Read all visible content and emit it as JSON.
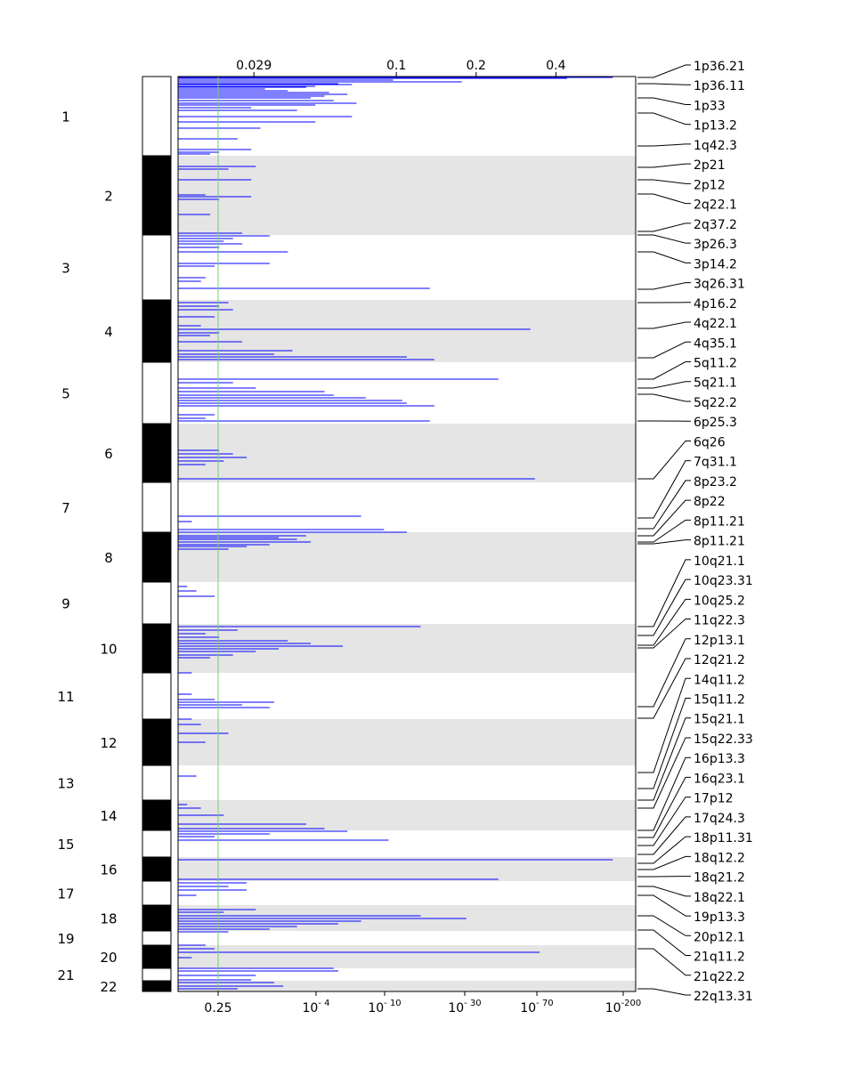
{
  "chart_data": {
    "type": "genome-wide bar plot (horizontal segments per chromosome)",
    "top_axis_ticks": [
      "0.029",
      "0.1",
      "0.2",
      "0.4"
    ],
    "top_axis_values": [
      0.029,
      0.1,
      0.2,
      0.4
    ],
    "bottom_axis_ticks": [
      {
        "label": "0.25",
        "base": "",
        "exp": ""
      },
      {
        "label": "",
        "base": "10",
        "exp": "- 4"
      },
      {
        "label": "",
        "base": "10",
        "exp": "- 10"
      },
      {
        "label": "",
        "base": "10",
        "exp": "- 30"
      },
      {
        "label": "",
        "base": "10",
        "exp": "- 70"
      },
      {
        "label": "",
        "base": "10",
        "exp": "-200"
      }
    ],
    "significance_threshold": {
      "qvalue": 0.25,
      "color": "#77cc77"
    },
    "colors": {
      "bar": "#0000ff",
      "band_dark": "#000000",
      "shade": "#e5e5e5"
    },
    "chromosomes": [
      {
        "label": "1",
        "start": 0,
        "end": 89
      },
      {
        "label": "2",
        "start": 89,
        "end": 178
      },
      {
        "label": "3",
        "start": 178,
        "end": 251
      },
      {
        "label": "4",
        "start": 251,
        "end": 321
      },
      {
        "label": "5",
        "start": 321,
        "end": 390
      },
      {
        "label": "6",
        "start": 390,
        "end": 456
      },
      {
        "label": "7",
        "start": 456,
        "end": 512
      },
      {
        "label": "8",
        "start": 512,
        "end": 568
      },
      {
        "label": "9",
        "start": 568,
        "end": 615
      },
      {
        "label": "10",
        "start": 615,
        "end": 670
      },
      {
        "label": "11",
        "start": 670,
        "end": 722
      },
      {
        "label": "12",
        "start": 722,
        "end": 774
      },
      {
        "label": "13",
        "start": 774,
        "end": 813
      },
      {
        "label": "14",
        "start": 813,
        "end": 847
      },
      {
        "label": "15",
        "start": 847,
        "end": 877
      },
      {
        "label": "16",
        "start": 877,
        "end": 904
      },
      {
        "label": "17",
        "start": 904,
        "end": 931
      },
      {
        "label": "18",
        "start": 931,
        "end": 960
      },
      {
        "label": "19",
        "start": 960,
        "end": 976
      },
      {
        "label": "20",
        "start": 976,
        "end": 1002
      },
      {
        "label": "21",
        "start": 1002,
        "end": 1016
      },
      {
        "label": "22",
        "start": 1016,
        "end": 1028
      }
    ],
    "peak_labels": [
      "1p36.21",
      "1p36.11",
      "1p33",
      "1p13.2",
      "1q42.3",
      "2p21",
      "2p12",
      "2q22.1",
      "2q37.2",
      "3p26.3",
      "3p14.2",
      "3q26.31",
      "4p16.2",
      "4q22.1",
      "4q35.1",
      "5q11.2",
      "5q21.1",
      "5q22.2",
      "6p25.3",
      "6q26",
      "7q31.1",
      "8p23.2",
      "8p22",
      "8p11.21",
      "8p11.21",
      "10q21.1",
      "10q23.31",
      "10q25.2",
      "11q22.3",
      "12p13.1",
      "12q21.2",
      "14q11.2",
      "15q11.2",
      "15q21.1",
      "15q22.33",
      "16p13.3",
      "16q23.1",
      "17p12",
      "17q24.3",
      "18p11.31",
      "18q12.2",
      "18q21.2",
      "18q22.1",
      "19p13.3",
      "20p12.1",
      "21q11.2",
      "21q22.2",
      "22q13.31"
    ],
    "peak_positions": [
      1,
      8,
      24,
      41,
      78,
      102,
      116,
      132,
      174,
      178,
      197,
      239,
      254,
      283,
      316,
      340,
      350,
      357,
      387,
      452,
      496,
      508,
      516,
      523,
      525,
      618,
      628,
      639,
      642,
      708,
      721,
      782,
      800,
      813,
      822,
      847,
      855,
      864,
      874,
      884,
      891,
      899,
      910,
      920,
      943,
      959,
      980,
      1025
    ],
    "segments": [
      [
        1,
        0.95,
        0.2
      ],
      [
        2,
        0.85,
        0.3
      ],
      [
        4,
        0.47,
        0.3
      ],
      [
        6,
        0.62,
        0.5
      ],
      [
        8,
        0.35,
        0.3
      ],
      [
        9,
        0.38,
        0.3
      ],
      [
        11,
        0.3,
        0.3
      ],
      [
        12,
        0.28,
        0.2
      ],
      [
        14,
        0.19,
        0.3
      ],
      [
        16,
        0.24,
        0.3
      ],
      [
        18,
        0.33,
        0.3
      ],
      [
        20,
        0.37,
        0.3
      ],
      [
        22,
        0.32,
        0.3
      ],
      [
        24,
        0.29,
        0.3
      ],
      [
        27,
        0.34,
        0.3
      ],
      [
        30,
        0.39,
        0.3
      ],
      [
        32,
        0.3,
        0.3
      ],
      [
        35,
        0.16,
        0.2
      ],
      [
        38,
        0.26,
        0.3
      ],
      [
        45,
        0.38,
        0.3
      ],
      [
        51,
        0.3,
        0.3
      ],
      [
        58,
        0.18,
        0.3
      ],
      [
        70,
        0.13,
        0.3
      ],
      [
        82,
        0.16,
        0.3
      ],
      [
        85,
        0.09,
        0.3
      ],
      [
        87,
        0.07,
        0.3
      ],
      [
        101,
        0.17,
        0.3
      ],
      [
        104,
        0.11,
        0.3
      ],
      [
        116,
        0.16,
        0.3
      ],
      [
        133,
        0.06,
        0.3
      ],
      [
        135,
        0.16,
        0.3
      ],
      [
        138,
        0.09,
        0.3
      ],
      [
        155,
        0.07,
        0.3
      ],
      [
        176,
        0.14,
        0.3
      ],
      [
        179,
        0.2,
        0.3
      ],
      [
        182,
        0.12,
        0.3
      ],
      [
        185,
        0.1,
        0.3
      ],
      [
        188,
        0.14,
        0.3
      ],
      [
        192,
        0.09,
        0.3
      ],
      [
        197,
        0.24,
        0.3
      ],
      [
        210,
        0.2,
        0.3
      ],
      [
        213,
        0.08,
        0.3
      ],
      [
        226,
        0.06,
        0.3
      ],
      [
        230,
        0.05,
        0.3
      ],
      [
        238,
        0.55,
        0.3
      ],
      [
        254,
        0.11,
        0.3
      ],
      [
        258,
        0.09,
        0.3
      ],
      [
        262,
        0.12,
        0.3
      ],
      [
        270,
        0.08,
        0.3
      ],
      [
        280,
        0.05,
        0.3
      ],
      [
        284,
        0.77,
        0.3
      ],
      [
        288,
        0.09,
        0.3
      ],
      [
        291,
        0.07,
        0.3
      ],
      [
        298,
        0.14,
        0.3
      ],
      [
        308,
        0.25,
        0.3
      ],
      [
        312,
        0.21,
        0.3
      ],
      [
        315,
        0.5,
        0.3
      ],
      [
        318,
        0.56,
        0.3
      ],
      [
        340,
        0.7,
        0.3
      ],
      [
        344,
        0.12,
        0.3
      ],
      [
        350,
        0.17,
        0.3
      ],
      [
        354,
        0.32,
        0.3
      ],
      [
        358,
        0.34,
        0.3
      ],
      [
        361,
        0.41,
        0.3
      ],
      [
        364,
        0.49,
        0.3
      ],
      [
        367,
        0.5,
        0.3
      ],
      [
        370,
        0.56,
        0.3
      ],
      [
        380,
        0.08,
        0.3
      ],
      [
        384,
        0.06,
        0.3
      ],
      [
        387,
        0.55,
        0.3
      ],
      [
        420,
        0.09,
        0.3
      ],
      [
        424,
        0.12,
        0.3
      ],
      [
        428,
        0.15,
        0.3
      ],
      [
        432,
        0.1,
        0.3
      ],
      [
        436,
        0.06,
        0.3
      ],
      [
        452,
        0.78,
        0.3
      ],
      [
        494,
        0.4,
        0.3
      ],
      [
        500,
        0.03,
        0.3
      ],
      [
        509,
        0.45,
        0.3
      ],
      [
        512,
        0.5,
        0.3
      ],
      [
        516,
        0.28,
        0.3
      ],
      [
        518,
        0.22,
        0.3
      ],
      [
        520,
        0.26,
        0.3
      ],
      [
        523,
        0.29,
        0.3
      ],
      [
        526,
        0.2,
        0.3
      ],
      [
        528,
        0.15,
        0.3
      ],
      [
        531,
        0.11,
        0.3
      ],
      [
        573,
        0.02,
        0.3
      ],
      [
        578,
        0.04,
        0.3
      ],
      [
        584,
        0.08,
        0.3
      ],
      [
        618,
        0.53,
        0.3
      ],
      [
        622,
        0.13,
        0.3
      ],
      [
        626,
        0.06,
        0.3
      ],
      [
        630,
        0.09,
        0.3
      ],
      [
        634,
        0.24,
        0.3
      ],
      [
        637,
        0.29,
        0.3
      ],
      [
        640,
        0.36,
        0.3
      ],
      [
        643,
        0.22,
        0.3
      ],
      [
        646,
        0.17,
        0.3
      ],
      [
        650,
        0.12,
        0.3
      ],
      [
        653,
        0.07,
        0.3
      ],
      [
        670,
        0.03,
        0.3
      ],
      [
        694,
        0.03,
        0.3
      ],
      [
        700,
        0.08,
        0.3
      ],
      [
        703,
        0.21,
        0.3
      ],
      [
        706,
        0.14,
        0.3
      ],
      [
        709,
        0.2,
        0.3
      ],
      [
        722,
        0.03,
        0.3
      ],
      [
        728,
        0.05,
        0.3
      ],
      [
        738,
        0.11,
        0.3
      ],
      [
        748,
        0.06,
        0.3
      ],
      [
        786,
        0.04,
        0.3
      ],
      [
        818,
        0.02,
        0.3
      ],
      [
        822,
        0.05,
        0.3
      ],
      [
        830,
        0.1,
        0.3
      ],
      [
        840,
        0.28,
        0.3
      ],
      [
        845,
        0.32,
        0.3
      ],
      [
        848,
        0.37,
        0.3
      ],
      [
        851,
        0.2,
        0.3
      ],
      [
        854,
        0.08,
        0.3
      ],
      [
        858,
        0.46,
        0.3
      ],
      [
        880,
        0.95,
        0.3
      ],
      [
        902,
        0.7,
        0.3
      ],
      [
        906,
        0.15,
        0.3
      ],
      [
        910,
        0.11,
        0.3
      ],
      [
        914,
        0.15,
        0.3
      ],
      [
        920,
        0.04,
        0.3
      ],
      [
        936,
        0.17,
        0.3
      ],
      [
        939,
        0.1,
        0.3
      ],
      [
        943,
        0.53,
        0.3
      ],
      [
        946,
        0.63,
        0.3
      ],
      [
        949,
        0.4,
        0.3
      ],
      [
        952,
        0.35,
        0.3
      ],
      [
        955,
        0.26,
        0.3
      ],
      [
        958,
        0.2,
        0.3
      ],
      [
        961,
        0.11,
        0.3
      ],
      [
        976,
        0.06,
        0.3
      ],
      [
        980,
        0.08,
        0.3
      ],
      [
        984,
        0.79,
        0.3
      ],
      [
        990,
        0.03,
        0.3
      ],
      [
        1002,
        0.34,
        0.3
      ],
      [
        1005,
        0.35,
        0.3
      ],
      [
        1010,
        0.17,
        0.3
      ],
      [
        1015,
        0.16,
        0.3
      ],
      [
        1018,
        0.21,
        0.3
      ],
      [
        1022,
        0.23,
        0.3
      ],
      [
        1025,
        0.13,
        0.3
      ]
    ]
  }
}
